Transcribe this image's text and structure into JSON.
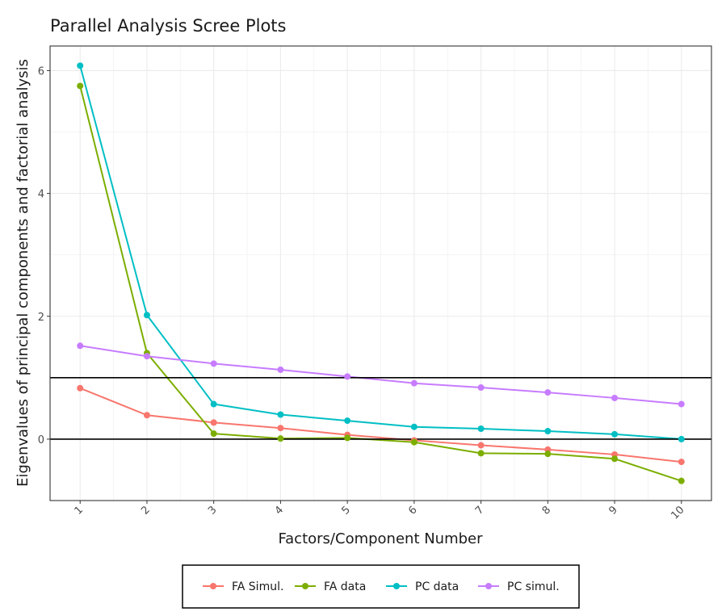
{
  "chart_data": {
    "type": "line",
    "title": "Parallel Analysis Scree Plots",
    "xlabel": "Factors/Component Number",
    "ylabel": "Eigenvalues of principal components and factorial analysis",
    "x": [
      1,
      2,
      3,
      4,
      5,
      6,
      7,
      8,
      9,
      10
    ],
    "x_tick_labels": [
      "1",
      "2",
      "3",
      "4",
      "5",
      "6",
      "7",
      "8",
      "9",
      "10"
    ],
    "y_ticks": [
      0,
      2,
      4,
      6
    ],
    "y_tick_labels": [
      "0",
      "2",
      "4",
      "6"
    ],
    "xlim": [
      0.55,
      10.45
    ],
    "ylim": [
      -1.0,
      6.4
    ],
    "reference_lines": [
      0,
      1
    ],
    "grid": true,
    "legend_position": "bottom",
    "series": [
      {
        "name": "FA Simul.",
        "color": "#F8766D",
        "values": [
          0.83,
          0.39,
          0.27,
          0.18,
          0.07,
          -0.02,
          -0.1,
          -0.17,
          -0.25,
          -0.37
        ]
      },
      {
        "name": "FA data",
        "color": "#7CAE00",
        "values": [
          5.75,
          1.4,
          0.09,
          0.01,
          0.02,
          -0.05,
          -0.23,
          -0.24,
          -0.32,
          -0.68
        ]
      },
      {
        "name": "PC data",
        "color": "#00BFC4",
        "values": [
          6.08,
          2.02,
          0.57,
          0.4,
          0.3,
          0.2,
          0.17,
          0.13,
          0.08,
          0.0
        ]
      },
      {
        "name": "PC simul.",
        "color": "#C77CFF",
        "values": [
          1.52,
          1.35,
          1.23,
          1.13,
          1.02,
          0.91,
          0.84,
          0.76,
          0.67,
          0.57
        ]
      }
    ]
  }
}
